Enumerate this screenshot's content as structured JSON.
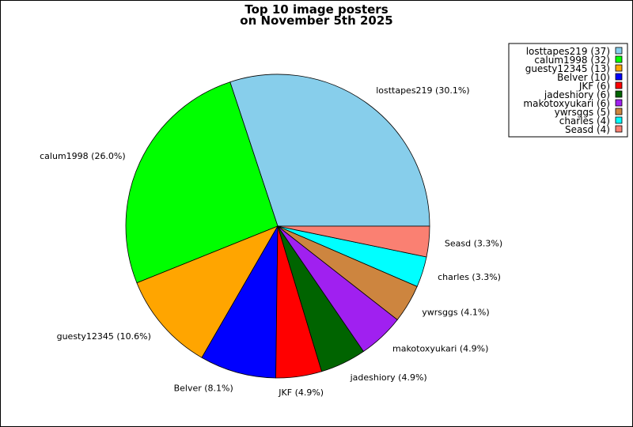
{
  "chart_data": {
    "type": "pie",
    "title_lines": [
      "Top 10 image posters",
      "on November 5th 2025"
    ],
    "slices": [
      {
        "name": "losttapes219",
        "value": 37,
        "percent_label": "losttapes219 (30.1%)",
        "legend_label": "losttapes219 (37)",
        "color": "#87CEEB"
      },
      {
        "name": "calum1998",
        "value": 32,
        "percent_label": "calum1998 (26.0%)",
        "legend_label": "calum1998 (32)",
        "color": "#00FF00"
      },
      {
        "name": "guesty12345",
        "value": 13,
        "percent_label": "guesty12345 (10.6%)",
        "legend_label": "guesty12345 (13)",
        "color": "#FFA500"
      },
      {
        "name": "Belver",
        "value": 10,
        "percent_label": "Belver (8.1%)",
        "legend_label": "Belver (10)",
        "color": "#0000FF"
      },
      {
        "name": "JKF",
        "value": 6,
        "percent_label": "JKF (4.9%)",
        "legend_label": "JKF (6)",
        "color": "#FF0000"
      },
      {
        "name": "jadeshiory",
        "value": 6,
        "percent_label": "jadeshiory (4.9%)",
        "legend_label": "jadeshiory (6)",
        "color": "#006400"
      },
      {
        "name": "makotoxyukari",
        "value": 6,
        "percent_label": "makotoxyukari (4.9%)",
        "legend_label": "makotoxyukari (6)",
        "color": "#A020F0"
      },
      {
        "name": "ywrsggs",
        "value": 5,
        "percent_label": "ywrsggs (4.1%)",
        "legend_label": "ywrsggs (5)",
        "color": "#CD853F"
      },
      {
        "name": "charles",
        "value": 4,
        "percent_label": "charles (3.3%)",
        "legend_label": "charles (4)",
        "color": "#00FFFF"
      },
      {
        "name": "Seasd",
        "value": 4,
        "percent_label": "Seasd (3.3%)",
        "legend_label": "Seasd (4)",
        "color": "#FA8072"
      }
    ],
    "start_angle_deg": 0,
    "direction": "counterclockwise",
    "legend_position": "top-right"
  }
}
